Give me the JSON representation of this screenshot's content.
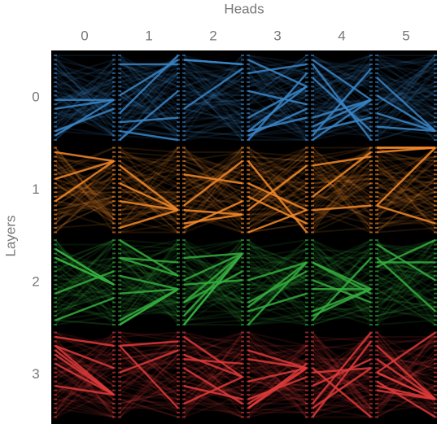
{
  "header": {
    "title": "Heads",
    "columns": [
      "0",
      "1",
      "2",
      "3",
      "4",
      "5"
    ]
  },
  "sidebar": {
    "title": "Layers",
    "rows": [
      "0",
      "1",
      "2",
      "3"
    ]
  },
  "layer_colors": [
    "#3a86c8",
    "#f58a2a",
    "#35ad3f",
    "#e03a3a"
  ]
}
